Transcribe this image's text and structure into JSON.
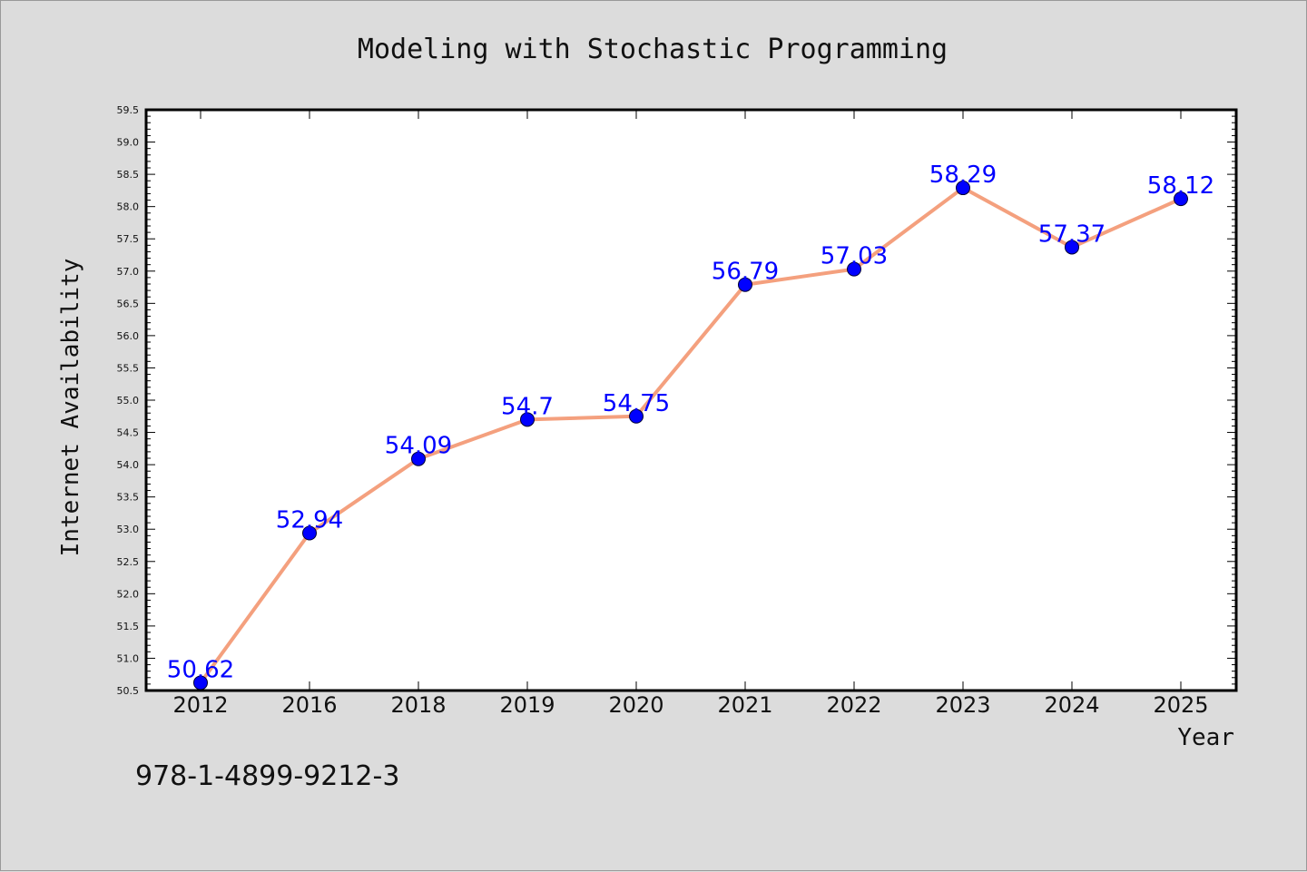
{
  "chart_data": {
    "type": "line",
    "title": "Modeling with Stochastic Programming",
    "xlabel": "Year",
    "ylabel": "Internet Availability",
    "categories": [
      "2012",
      "2016",
      "2018",
      "2019",
      "2020",
      "2021",
      "2022",
      "2023",
      "2024",
      "2025"
    ],
    "values": [
      50.62,
      52.94,
      54.09,
      54.7,
      54.75,
      56.79,
      57.03,
      58.29,
      57.37,
      58.12
    ],
    "data_labels": [
      "50.62",
      "52.94",
      "54.09",
      "54.7",
      "54.75",
      "56.79",
      "57.03",
      "58.29",
      "57.37",
      "58.12"
    ],
    "ylim": [
      50.5,
      59.5
    ],
    "yticks": [
      "50.5",
      "51.0",
      "51.5",
      "52.0",
      "52.5",
      "53.0",
      "53.5",
      "54.0",
      "54.5",
      "55.0",
      "55.5",
      "56.0",
      "56.5",
      "57.0",
      "57.5",
      "58.0",
      "58.5",
      "59.0",
      "59.5"
    ],
    "grid": false,
    "line_color": "#f4a07e",
    "marker_color": "#0000ff",
    "label_color": "#0000ff"
  },
  "footer": {
    "isbn": "978-1-4899-9212-3"
  }
}
